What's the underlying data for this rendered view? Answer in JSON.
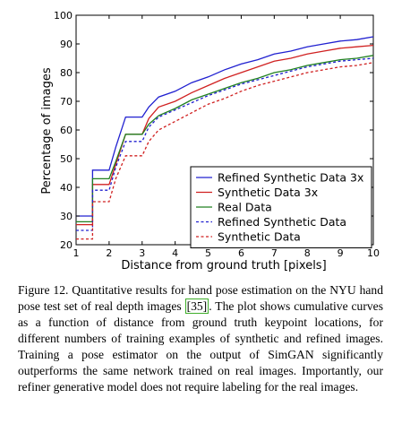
{
  "chart_data": {
    "type": "line",
    "xlabel": "Distance from ground truth [pixels]",
    "ylabel": "Percentage of images",
    "xlim": [
      1,
      10
    ],
    "ylim": [
      20,
      100
    ],
    "xticks": [
      1,
      2,
      3,
      4,
      5,
      6,
      7,
      8,
      9,
      10
    ],
    "yticks": [
      20,
      30,
      40,
      50,
      60,
      70,
      80,
      90,
      100
    ],
    "grid": false,
    "legend_position": "lower-right",
    "series": [
      {
        "name": "Refined Synthetic Data 3x",
        "color": "#2020d0",
        "dash": "solid",
        "points": [
          [
            1,
            30
          ],
          [
            1.5,
            30
          ],
          [
            1.5,
            46
          ],
          [
            2,
            46
          ],
          [
            2,
            46
          ],
          [
            2.2,
            54
          ],
          [
            2.5,
            64.5
          ],
          [
            3,
            64.5
          ],
          [
            3.2,
            68
          ],
          [
            3.5,
            71.5
          ],
          [
            4,
            73.5
          ],
          [
            4.5,
            76.5
          ],
          [
            5,
            78.5
          ],
          [
            5.5,
            81
          ],
          [
            6,
            83
          ],
          [
            6.5,
            84.5
          ],
          [
            7,
            86.5
          ],
          [
            7.5,
            87.5
          ],
          [
            8,
            89
          ],
          [
            8.5,
            90
          ],
          [
            9,
            91
          ],
          [
            9.5,
            91.5
          ],
          [
            10,
            92.5
          ]
        ]
      },
      {
        "name": "Synthetic Data 3x",
        "color": "#d02020",
        "dash": "solid",
        "points": [
          [
            1,
            27
          ],
          [
            1.5,
            27
          ],
          [
            1.5,
            41
          ],
          [
            2,
            41
          ],
          [
            2.2,
            48
          ],
          [
            2.5,
            58.5
          ],
          [
            3,
            58.5
          ],
          [
            3.2,
            64
          ],
          [
            3.5,
            68
          ],
          [
            4,
            70
          ],
          [
            4.5,
            73
          ],
          [
            5,
            75.5
          ],
          [
            5.5,
            78
          ],
          [
            6,
            80
          ],
          [
            6.5,
            82
          ],
          [
            7,
            84
          ],
          [
            7.5,
            85
          ],
          [
            8,
            86.5
          ],
          [
            8.5,
            87.5
          ],
          [
            9,
            88.5
          ],
          [
            9.5,
            89
          ],
          [
            10,
            89.5
          ]
        ]
      },
      {
        "name": "Real Data",
        "color": "#208020",
        "dash": "solid",
        "points": [
          [
            1,
            28
          ],
          [
            1.5,
            28
          ],
          [
            1.5,
            43
          ],
          [
            2,
            43
          ],
          [
            2.2,
            49
          ],
          [
            2.5,
            58.5
          ],
          [
            3,
            58.5
          ],
          [
            3.2,
            62
          ],
          [
            3.5,
            65
          ],
          [
            4,
            67.5
          ],
          [
            4.5,
            70.5
          ],
          [
            5,
            72.5
          ],
          [
            5.5,
            74.5
          ],
          [
            6,
            76.5
          ],
          [
            6.5,
            78
          ],
          [
            7,
            80
          ],
          [
            7.5,
            81
          ],
          [
            8,
            82.5
          ],
          [
            8.5,
            83.5
          ],
          [
            9,
            84.5
          ],
          [
            9.5,
            85
          ],
          [
            10,
            86
          ]
        ]
      },
      {
        "name": "Refined Synthetic Data",
        "color": "#2020d0",
        "dash": "dashed",
        "points": [
          [
            1,
            25
          ],
          [
            1.5,
            25
          ],
          [
            1.5,
            39
          ],
          [
            2,
            39
          ],
          [
            2.2,
            47
          ],
          [
            2.5,
            56
          ],
          [
            3,
            56
          ],
          [
            3.2,
            61
          ],
          [
            3.5,
            64.5
          ],
          [
            4,
            67
          ],
          [
            4.5,
            69.5
          ],
          [
            5,
            72
          ],
          [
            5.5,
            74
          ],
          [
            6,
            76
          ],
          [
            6.5,
            77.5
          ],
          [
            7,
            79
          ],
          [
            7.5,
            80.5
          ],
          [
            8,
            82
          ],
          [
            8.5,
            83
          ],
          [
            9,
            84
          ],
          [
            9.5,
            84.5
          ],
          [
            10,
            85
          ]
        ]
      },
      {
        "name": "Synthetic Data",
        "color": "#d02020",
        "dash": "dashed",
        "points": [
          [
            1,
            22
          ],
          [
            1.5,
            22
          ],
          [
            1.5,
            35
          ],
          [
            2,
            35
          ],
          [
            2.2,
            43
          ],
          [
            2.5,
            51
          ],
          [
            3,
            51
          ],
          [
            3.2,
            56
          ],
          [
            3.5,
            60
          ],
          [
            4,
            63
          ],
          [
            4.5,
            66
          ],
          [
            5,
            69
          ],
          [
            5.5,
            71
          ],
          [
            6,
            73.5
          ],
          [
            6.5,
            75.5
          ],
          [
            7,
            77
          ],
          [
            7.5,
            78.5
          ],
          [
            8,
            80
          ],
          [
            8.5,
            81
          ],
          [
            9,
            82
          ],
          [
            9.5,
            82.5
          ],
          [
            10,
            83.5
          ]
        ]
      }
    ]
  },
  "caption": {
    "prefix": "Figure 12. Quantitative results for hand pose estimation on the NYU hand pose test set of real depth images ",
    "ref": "[35]",
    "suffix": ". The plot shows cumulative curves as a function of distance from ground truth keypoint locations, for different numbers of training examples of synthetic and refined images. Training a pose estimator on the output of SimGAN significantly outperforms the same network trained on real images. Importantly, our refiner generative model does not require labeling for the real images."
  }
}
